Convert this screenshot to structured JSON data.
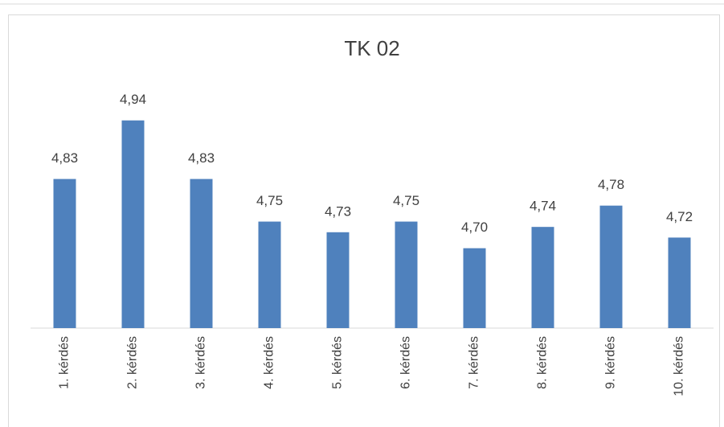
{
  "chart_data": {
    "type": "bar",
    "title": "TK 02",
    "categories": [
      "1. kérdés",
      "2. kérdés",
      "3. kérdés",
      "4. kérdés",
      "5. kérdés",
      "6. kérdés",
      "7. kérdés",
      "8. kérdés",
      "9. kérdés",
      "10. kérdés"
    ],
    "values": [
      4.83,
      4.94,
      4.83,
      4.75,
      4.73,
      4.75,
      4.7,
      4.74,
      4.78,
      4.72
    ],
    "value_labels": [
      "4,83",
      "4,94",
      "4,83",
      "4,75",
      "4,73",
      "4,75",
      "4,70",
      "4,74",
      "4,78",
      "4,72"
    ],
    "color": "#4f81bd",
    "ylim": [
      4.55,
      5.0
    ]
  }
}
